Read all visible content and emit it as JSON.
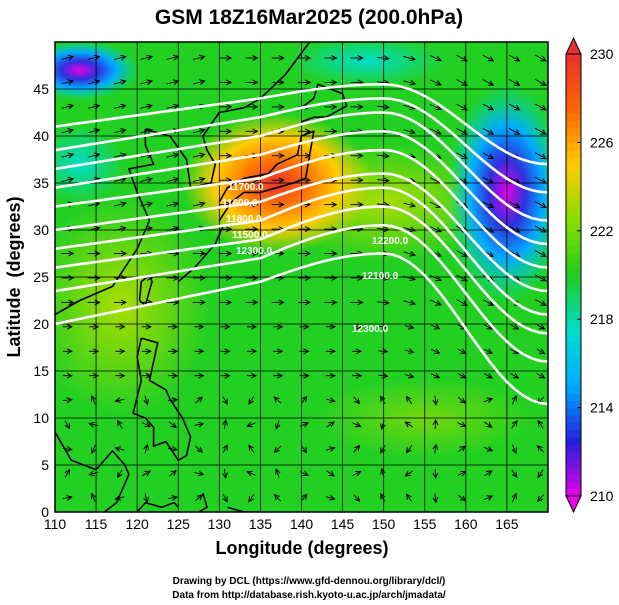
{
  "chart_data": {
    "type": "heatmap",
    "title": "GSM 18Z16Mar2025 (200.0hPa)",
    "xlabel": "Longitude (degrees)",
    "ylabel": "Latitude  (degrees)",
    "xlim": [
      110,
      170
    ],
    "ylim": [
      0,
      50
    ],
    "x_ticks": [
      110,
      115,
      120,
      125,
      130,
      135,
      140,
      145,
      150,
      155,
      160,
      165
    ],
    "y_ticks": [
      0,
      5,
      10,
      15,
      20,
      25,
      30,
      35,
      40,
      45
    ],
    "colorbar": {
      "range": [
        210,
        230
      ],
      "ticks": [
        210,
        214,
        218,
        222,
        226,
        230
      ],
      "colors": [
        "#e800e8",
        "#2222dd",
        "#00aaff",
        "#00ddcc",
        "#22cc22",
        "#88dd00",
        "#ffcc00",
        "#ff6600",
        "#e83030"
      ]
    },
    "contour_labels": [
      "12200.0",
      "12100.0",
      "12300.0",
      "11800.0",
      "11700.0",
      "11600.0",
      "11500.0"
    ],
    "contours": [
      {
        "lat_start": 20.0,
        "mid_lat": 24.5,
        "bump_lat": 27.5,
        "lat_end": 11.5
      },
      {
        "lat_start": 23.5,
        "mid_lat": 27.0,
        "bump_lat": 30.5,
        "lat_end": 16.0
      },
      {
        "lat_start": 26.0,
        "mid_lat": 29.0,
        "bump_lat": 32.5,
        "lat_end": 19.0
      },
      {
        "lat_start": 28.0,
        "mid_lat": 31.0,
        "bump_lat": 34.5,
        "lat_end": 21.0
      },
      {
        "lat_start": 30.0,
        "mid_lat": 33.0,
        "bump_lat": 36.0,
        "lat_end": 23.5
      },
      {
        "lat_start": 32.5,
        "mid_lat": 35.5,
        "bump_lat": 38.5,
        "lat_end": 26.0
      },
      {
        "lat_start": 34.5,
        "mid_lat": 38.0,
        "bump_lat": 40.5,
        "lat_end": 28.5
      },
      {
        "lat_start": 36.5,
        "mid_lat": 40.0,
        "bump_lat": 42.5,
        "lat_end": 31.0
      },
      {
        "lat_start": 38.5,
        "mid_lat": 42.0,
        "bump_lat": 44.0,
        "lat_end": 34.0
      },
      {
        "lat_start": 41.0,
        "mid_lat": 44.0,
        "bump_lat": 45.5,
        "lat_end": 37.0
      }
    ]
  },
  "credits": {
    "line1": "Drawing by DCL (https://www.gfd-dennou.org/library/dcl/)",
    "line2": "Data from http://database.rish.kyoto-u.ac.jp/arch/jmadata/"
  }
}
